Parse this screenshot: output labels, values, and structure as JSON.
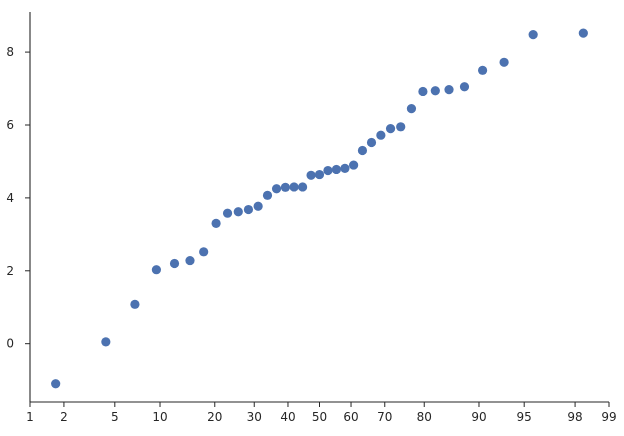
{
  "chart_data": {
    "type": "scatter",
    "title": "",
    "xlabel": "",
    "ylabel": "",
    "x_scale": "probability",
    "x_ticks": [
      1,
      2,
      5,
      10,
      20,
      30,
      40,
      50,
      60,
      70,
      80,
      90,
      95,
      98,
      99
    ],
    "y_ticks": [
      0,
      2,
      4,
      6,
      8
    ],
    "xlim": [
      1,
      99
    ],
    "ylim": [
      -1.6,
      9.1
    ],
    "grid": false,
    "legend": "none",
    "marker_color": "#4c72b0",
    "series": [
      {
        "x": [
          1.7,
          4.3,
          6.9,
          9.5,
          12.2,
          14.9,
          17.6,
          20.3,
          23.0,
          25.7,
          28.4,
          31.1,
          33.8,
          36.5,
          39.2,
          41.9,
          44.6,
          47.3,
          50.0,
          52.7,
          55.4,
          58.1,
          60.8,
          63.5,
          66.2,
          68.9,
          71.6,
          74.3,
          77.0,
          79.7,
          82.4,
          85.1,
          87.8,
          90.5,
          93.1,
          95.7,
          98.3
        ],
        "y": [
          -1.1,
          0.05,
          1.08,
          2.03,
          2.2,
          2.28,
          2.52,
          3.3,
          3.58,
          3.62,
          3.68,
          3.77,
          4.07,
          4.25,
          4.29,
          4.3,
          4.3,
          4.62,
          4.64,
          4.75,
          4.78,
          4.81,
          4.9,
          5.3,
          5.52,
          5.72,
          5.9,
          5.95,
          6.45,
          6.92,
          6.94,
          6.97,
          7.05,
          7.5,
          7.72,
          8.48,
          8.52
        ]
      }
    ]
  }
}
